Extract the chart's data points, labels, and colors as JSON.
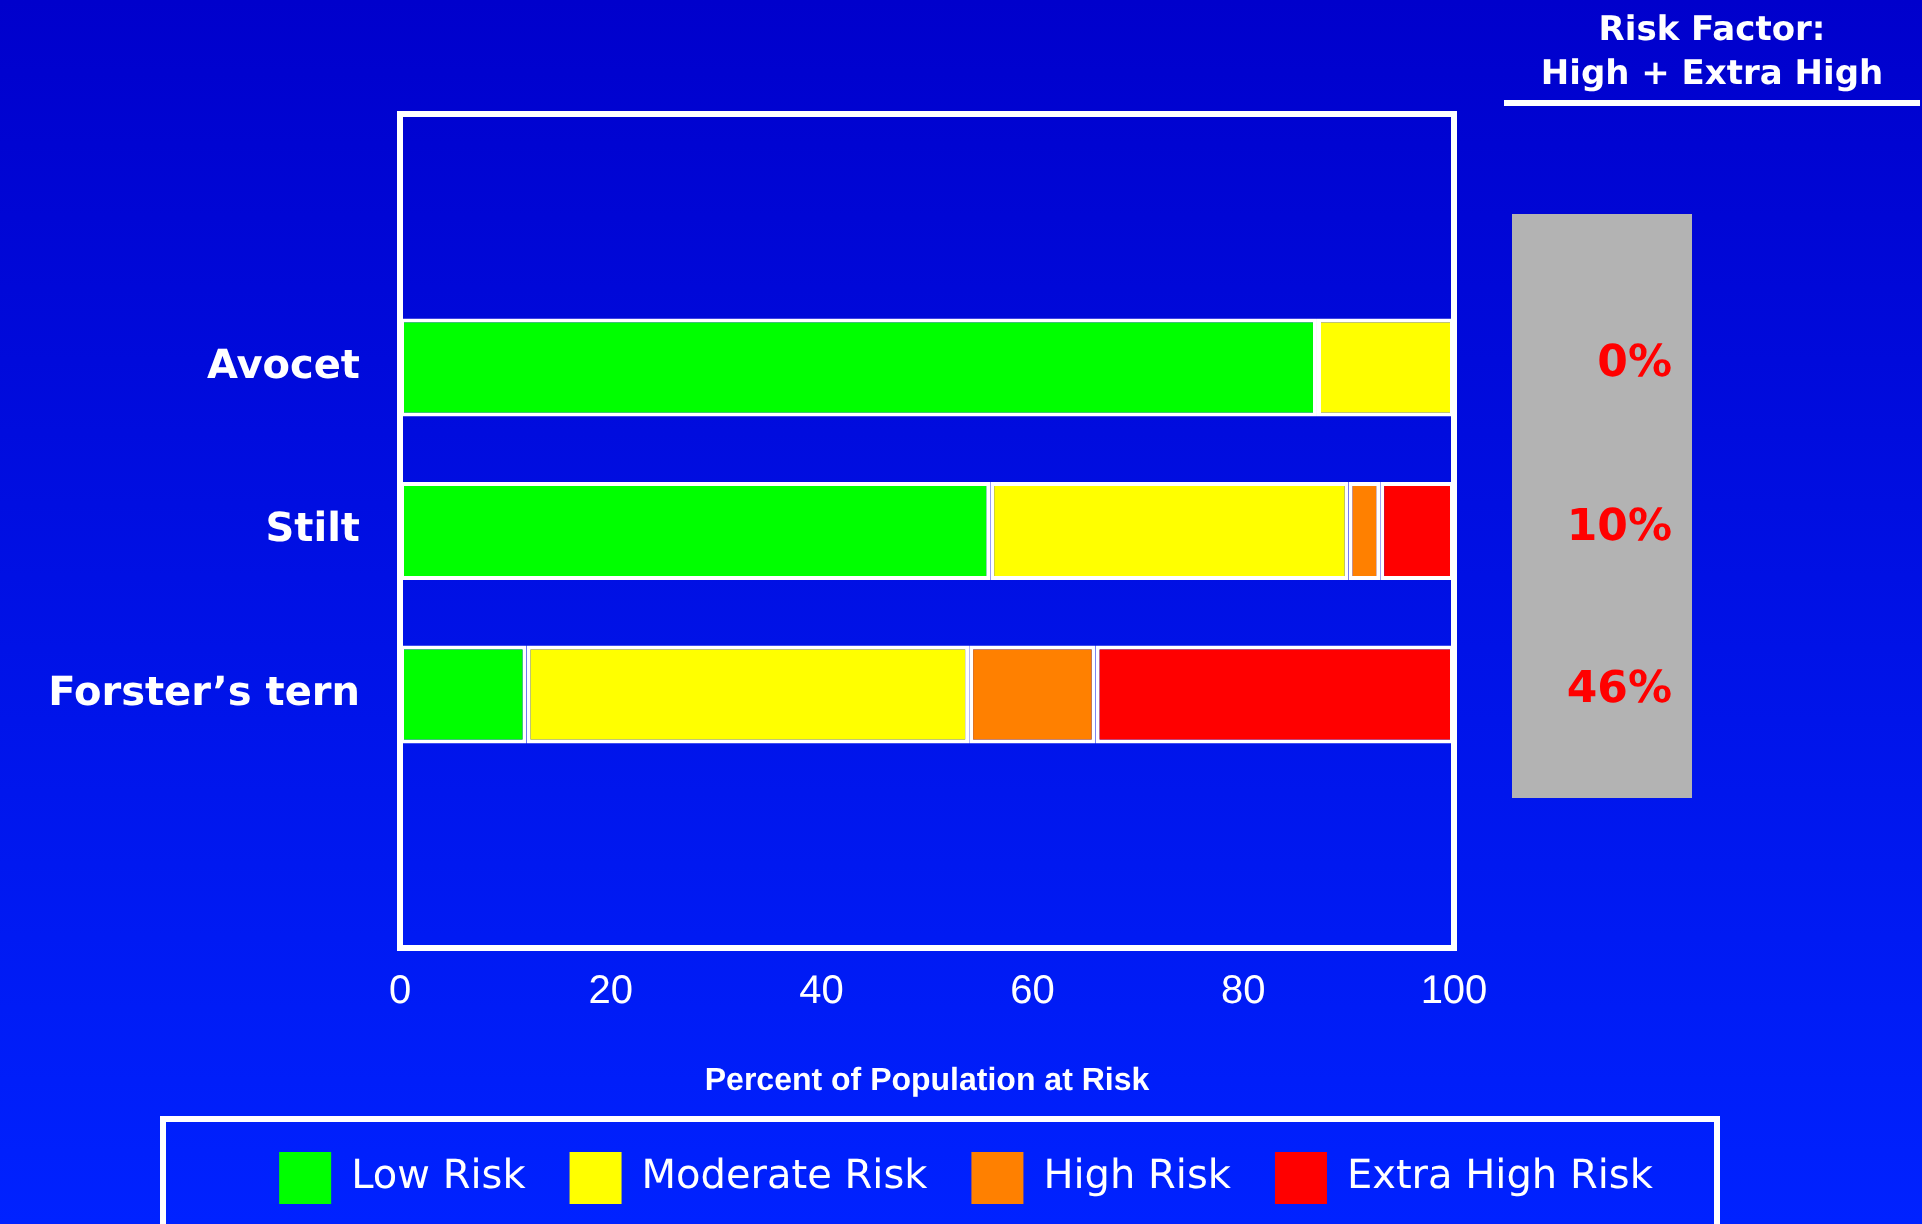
{
  "chart_data": {
    "type": "bar",
    "orientation": "horizontal",
    "stacked": true,
    "categories": [
      "Avocet",
      "Stilt",
      "Forster’s tern"
    ],
    "series": [
      {
        "name": "Low Risk",
        "color": "#00ff00",
        "values": [
          87,
          56,
          12
        ]
      },
      {
        "name": "Moderate Risk",
        "color": "#ffff00",
        "values": [
          13,
          34,
          42
        ]
      },
      {
        "name": "High Risk",
        "color": "#ff8000",
        "values": [
          0,
          3,
          12
        ]
      },
      {
        "name": "Extra High Risk",
        "color": "#ff0000",
        "values": [
          0,
          7,
          34
        ]
      }
    ],
    "xlabel": "Percent of Population at Risk",
    "xlim": [
      0,
      100
    ],
    "xticks": [
      0,
      20,
      40,
      60,
      80,
      100
    ],
    "grid": false,
    "legend": "bottom",
    "annotations": [
      "Risk Factor:\nHigh + Extra High",
      "0%",
      "10%",
      "46%"
    ]
  }
}
